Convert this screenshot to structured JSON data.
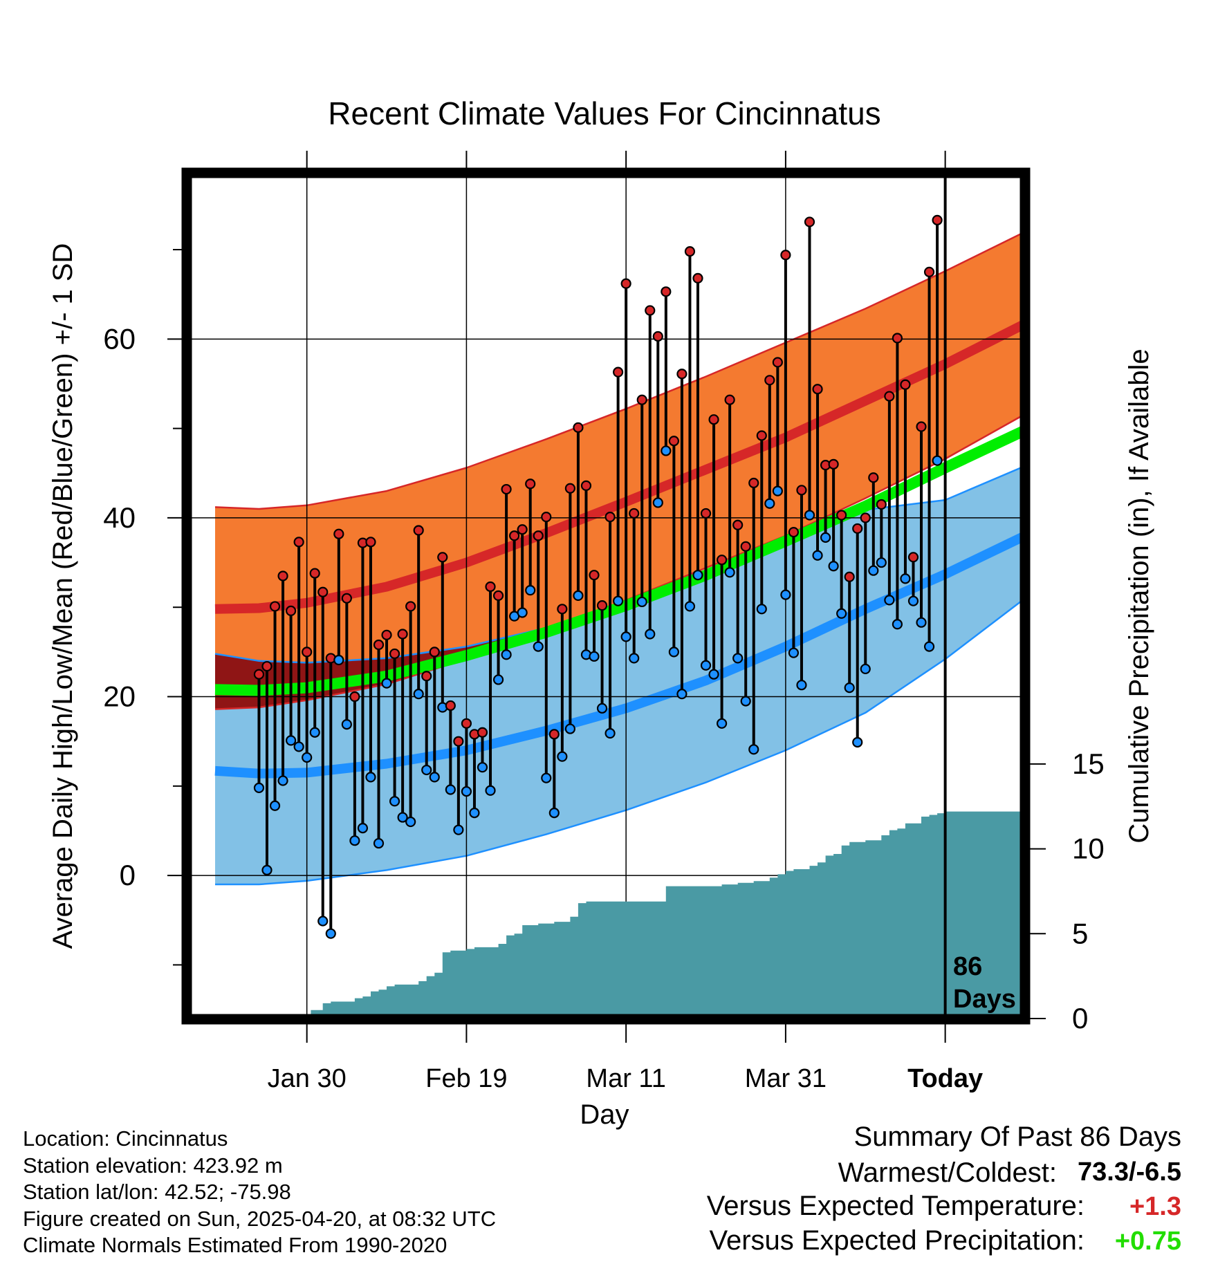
{
  "chart_data": {
    "type": "line",
    "title": "Recent Climate Values For Cincinnatus",
    "xlabel": "Day",
    "ylabel": "Average Daily High/Low/Mean (Red/Blue/Green) +/- 1 SD",
    "y2label": "Cumulative Precipitation (in), If Available",
    "x_ticks": [
      "Jan 30",
      "Feb 19",
      "Mar 11",
      "Mar 31",
      "Today"
    ],
    "x_tick_days": [
      10,
      30,
      50,
      70,
      90
    ],
    "xlim": [
      -1.5,
      100
    ],
    "ylim": [
      -16,
      79
    ],
    "y_ticks": [
      0,
      20,
      40,
      60
    ],
    "y_minor_ticks": [
      -10,
      10,
      30,
      50,
      70
    ],
    "y2_ticks": [
      0,
      5,
      10,
      15
    ],
    "y2lim": [
      0,
      50
    ],
    "grid": true,
    "today_marker": {
      "label_line1": "86",
      "label_line2": "Days",
      "day": 90
    },
    "normals": {
      "days": [
        -1.5,
        4,
        10,
        20,
        30,
        40,
        50,
        60,
        70,
        80,
        90,
        100
      ],
      "high_mean": [
        29.8,
        29.9,
        30.5,
        32.3,
        35.0,
        38.3,
        41.8,
        45.4,
        49.0,
        53.1,
        57.2,
        61.7
      ],
      "high_upper": [
        41.2,
        41.0,
        41.4,
        43.0,
        45.6,
        48.8,
        52.2,
        55.8,
        59.6,
        63.4,
        67.6,
        72.0
      ],
      "high_lower": [
        18.6,
        18.8,
        19.6,
        21.4,
        24.2,
        27.4,
        30.8,
        34.4,
        38.0,
        42.2,
        46.6,
        51.6
      ],
      "low_mean": [
        11.7,
        11.4,
        11.5,
        12.5,
        14.0,
        16.2,
        18.7,
        21.8,
        25.6,
        29.8,
        33.7,
        38.0
      ],
      "low_upper": [
        24.8,
        24.0,
        23.8,
        24.3,
        25.6,
        27.7,
        30.2,
        33.5,
        37.2,
        40.9,
        42.0,
        45.8
      ],
      "low_lower": [
        -1.0,
        -1.0,
        -0.6,
        0.6,
        2.2,
        4.6,
        7.3,
        10.4,
        14.0,
        18.2,
        24.2,
        31.0
      ],
      "mean_mean": [
        20.8,
        20.7,
        21.0,
        22.3,
        24.6,
        27.2,
        30.2,
        33.6,
        37.4,
        41.3,
        45.6,
        49.8
      ]
    },
    "observations": {
      "days": [
        4,
        5,
        6,
        7,
        8,
        9,
        10,
        11,
        12,
        13,
        14,
        15,
        16,
        17,
        18,
        19,
        20,
        21,
        22,
        23,
        24,
        25,
        26,
        27,
        28,
        29,
        30,
        31,
        32,
        33,
        34,
        35,
        36,
        37,
        38,
        39,
        40,
        41,
        42,
        43,
        44,
        45,
        46,
        47,
        48,
        49,
        50,
        51,
        52,
        53,
        54,
        55,
        56,
        57,
        58,
        59,
        60,
        61,
        62,
        63,
        64,
        65,
        66,
        67,
        68,
        69,
        70,
        71,
        72,
        73,
        74,
        75,
        76,
        77,
        78,
        79,
        80,
        81,
        82,
        83,
        84,
        85,
        86,
        87,
        88,
        89
      ],
      "high": [
        22.5,
        23.4,
        30.1,
        33.5,
        29.6,
        37.3,
        25.0,
        33.8,
        31.7,
        24.3,
        38.2,
        31.0,
        20.0,
        37.2,
        37.3,
        25.8,
        26.9,
        24.8,
        27.0,
        30.1,
        38.6,
        22.3,
        25.0,
        35.6,
        19.0,
        15.0,
        17.0,
        15.8,
        16.0,
        32.3,
        31.3,
        43.2,
        38.0,
        38.7,
        43.8,
        38.0,
        40.1,
        15.8,
        29.8,
        43.3,
        50.1,
        43.6,
        33.6,
        30.2,
        40.1,
        56.3,
        66.2,
        40.5,
        53.2,
        63.2,
        60.3,
        65.3,
        48.6,
        56.1,
        69.8,
        66.8,
        40.5,
        51.0,
        35.3,
        53.2,
        39.2,
        36.8,
        43.9,
        49.2,
        55.4,
        57.4,
        69.4,
        38.4,
        43.1,
        73.1,
        54.4,
        45.9,
        46.0,
        40.3,
        33.4,
        38.8,
        40.0,
        44.5,
        41.5,
        53.6,
        60.1,
        54.9,
        35.6,
        50.2,
        67.5,
        73.3
      ],
      "low": [
        9.8,
        0.6,
        7.8,
        10.6,
        15.1,
        14.4,
        13.2,
        16.0,
        -5.1,
        -6.5,
        24.1,
        16.9,
        3.9,
        5.3,
        11.0,
        3.6,
        21.5,
        8.3,
        6.5,
        6.0,
        20.3,
        11.8,
        11.0,
        18.8,
        9.6,
        5.1,
        9.4,
        7.0,
        12.1,
        9.5,
        21.9,
        24.7,
        29.0,
        29.4,
        31.9,
        25.6,
        10.9,
        7.0,
        13.3,
        16.4,
        31.3,
        24.7,
        24.5,
        18.7,
        15.9,
        30.7,
        26.7,
        24.3,
        30.6,
        27.0,
        41.7,
        47.5,
        25.0,
        20.3,
        30.1,
        33.6,
        23.5,
        22.5,
        17.0,
        33.9,
        24.3,
        19.5,
        14.1,
        29.8,
        41.6,
        43.0,
        31.4,
        24.9,
        21.3,
        40.3,
        35.8,
        37.8,
        34.6,
        29.3,
        21.0,
        14.9,
        23.1,
        34.1,
        35.0,
        30.8,
        28.1,
        33.2,
        30.7,
        28.3,
        25.6,
        46.4
      ]
    },
    "cumulative_precip": {
      "days": [
        10,
        10.5,
        12,
        13,
        14,
        15,
        16,
        17,
        18,
        19,
        20,
        21,
        22,
        23,
        24,
        25,
        26,
        27,
        28,
        29,
        30,
        31,
        32,
        33,
        34,
        35,
        36,
        37,
        38,
        39,
        40,
        41,
        42,
        43,
        44,
        45,
        46,
        47,
        48,
        49,
        50,
        51,
        52,
        53,
        54,
        55,
        56,
        57,
        58,
        59,
        60,
        61,
        62,
        63,
        64,
        65,
        66,
        67,
        68,
        69,
        70,
        71,
        72,
        73,
        74,
        75,
        76,
        77,
        78,
        79,
        80,
        81,
        82,
        83,
        84,
        85,
        86,
        87,
        88,
        89,
        90,
        100
      ],
      "values": [
        0.0,
        0.5,
        0.9,
        1.0,
        1.0,
        1.0,
        1.2,
        1.3,
        1.6,
        1.7,
        1.9,
        2.0,
        2.0,
        2.0,
        2.2,
        2.5,
        2.7,
        3.9,
        4.0,
        4.0,
        4.1,
        4.2,
        4.2,
        4.2,
        4.4,
        4.9,
        5.0,
        5.5,
        5.5,
        5.6,
        5.6,
        5.7,
        5.7,
        6.0,
        6.8,
        6.9,
        6.9,
        6.9,
        6.9,
        6.9,
        6.9,
        6.9,
        6.9,
        6.9,
        6.9,
        7.8,
        7.8,
        7.8,
        7.8,
        7.8,
        7.8,
        7.8,
        7.9,
        7.9,
        8.0,
        8.0,
        8.1,
        8.1,
        8.3,
        8.5,
        8.7,
        8.8,
        8.8,
        9.0,
        9.2,
        9.6,
        9.7,
        10.2,
        10.4,
        10.4,
        10.5,
        10.5,
        10.8,
        11.1,
        11.2,
        11.5,
        11.5,
        11.9,
        12.0,
        12.1,
        12.2,
        12.2
      ]
    }
  },
  "footer": {
    "location": "Location: Cincinnatus",
    "elevation": "Station elevation: 423.92 m",
    "latlon": "Station lat/lon: 42.52; -75.98",
    "created": "Figure created on Sun, 2025-04-20, at 08:32 UTC",
    "normals": "Climate Normals Estimated From 1990-2020"
  },
  "summary": {
    "title": "Summary Of Past 86 Days",
    "warmest_label": "Warmest/Coldest:",
    "warmest_value": "73.3/-6.5",
    "temp_label": "Versus Expected Temperature:",
    "temp_value": "+1.3",
    "precip_label": "Versus Expected Precipitation:",
    "precip_value": "+0.75",
    "colors": {
      "temp": "#d62728",
      "precip": "#22dd00"
    }
  },
  "colors": {
    "high_band": "#f47a30",
    "high_band_edge": "#d62728",
    "high_mean": "#d62728",
    "overlap_band": "#8f1515",
    "low_band": "#82c1e6",
    "low_band_edge": "#1e90ff",
    "low_mean": "#1e90ff",
    "mean_line": "#00ee00",
    "precip_fill": "#4a9aa4",
    "high_marker": "#d62728",
    "low_marker": "#1e90ff"
  }
}
